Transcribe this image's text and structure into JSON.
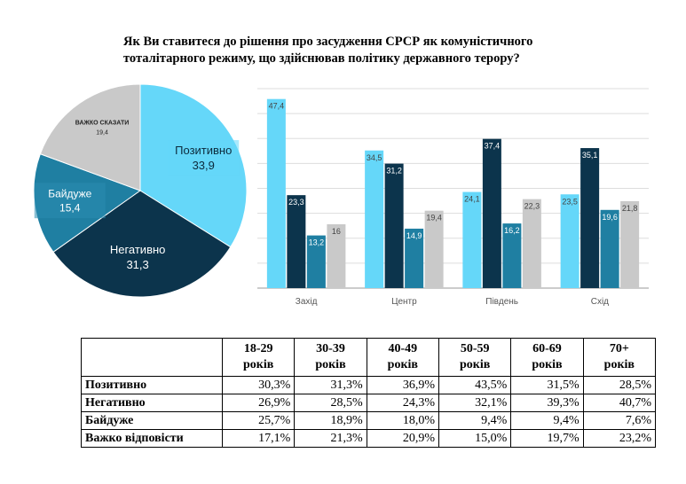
{
  "title": "Як Ви ставитеся до рішення про засудження СРСР як  комуністичного\nтоталітарного режиму, що здійснював політику державного терору?",
  "chart_data": [
    {
      "type": "pie",
      "slices": [
        {
          "label": "Позитивно",
          "value": 33.9,
          "color": "#65D7F9"
        },
        {
          "label": "Негативно",
          "value": 31.3,
          "color": "#0C344C"
        },
        {
          "label": "Байдуже",
          "value": 15.4,
          "color": "#1F7FA2"
        },
        {
          "label": "ВАЖКО СКАЗАТИ",
          "value": 19.4,
          "color": "#C9C9C9"
        }
      ]
    },
    {
      "type": "bar",
      "categories": [
        "Захід",
        "Центр",
        "Південь",
        "Схід"
      ],
      "series": [
        {
          "values": [
            47.4,
            34.5,
            24.1,
            23.5
          ],
          "color": "#65D7F9"
        },
        {
          "values": [
            23.3,
            31.2,
            37.4,
            35.1
          ],
          "color": "#0C344C"
        },
        {
          "values": [
            13.2,
            14.9,
            16.2,
            19.6
          ],
          "color": "#1F7FA2"
        },
        {
          "values": [
            16,
            19.4,
            22.3,
            21.8
          ],
          "color": "#C9C9C9"
        }
      ],
      "value_labels": [
        [
          "47,4",
          "34,5",
          "24,1",
          "23,5"
        ],
        [
          "23,3",
          "31,2",
          "37,4",
          "35,1"
        ],
        [
          "13,2",
          "14,9",
          "16,2",
          "19,6"
        ],
        [
          "16",
          "19,4",
          "22,3",
          "21,8"
        ]
      ],
      "ylim": [
        0,
        50
      ],
      "grid": true
    },
    {
      "type": "table",
      "columns": [
        "18-29 років",
        "30-39 років",
        "40-49 років",
        "50-59 років",
        "60-69 років",
        "70+ років"
      ],
      "rows": [
        {
          "label": "Позитивно",
          "values": [
            "30,3%",
            "31,3%",
            "36,9%",
            "43,5%",
            "31,5%",
            "28,5%"
          ]
        },
        {
          "label": "Негативно",
          "values": [
            "26,9%",
            "28,5%",
            "24,3%",
            "32,1%",
            "39,3%",
            "40,7%"
          ]
        },
        {
          "label": "Байдуже",
          "values": [
            "25,7%",
            "18,9%",
            "18,0%",
            "9,4%",
            "9,4%",
            "7,6%"
          ]
        },
        {
          "label": "Важко відповісти",
          "values": [
            "17,1%",
            "21,3%",
            "20,9%",
            "15,0%",
            "19,7%",
            "23,2%"
          ]
        }
      ]
    }
  ]
}
